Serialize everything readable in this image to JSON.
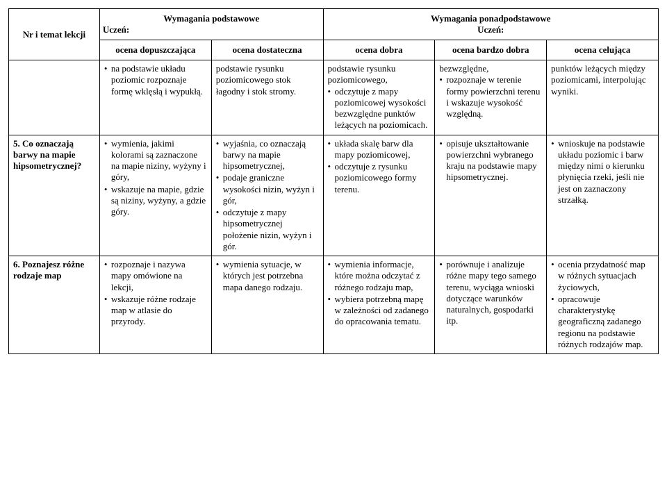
{
  "header": {
    "col_topic": "Nr i temat lekcji",
    "group_basic_title": "Wymagania podstawowe",
    "group_above_title": "Wymagania ponadpodstawowe",
    "student_label": "Uczeń:",
    "grades": {
      "g1": "ocena dopuszczająca",
      "g2": "ocena dostateczna",
      "g3": "ocena dobra",
      "g4": "ocena bardzo dobra",
      "g5": "ocena celująca"
    }
  },
  "row0": {
    "topic": "",
    "c1": "na podstawie układu poziomic rozpoznaje formę wklęsłą i wypukłą.",
    "c2": "podstawie rysunku poziomicowego stok łagodny i stok stromy.",
    "c3_a": "podstawie rysunku poziomicowego,",
    "c3_b": "odczytuje z mapy poziomicowej wysokości bezwzględne punktów leżących na poziomicach.",
    "c4_a": "bezwzględne,",
    "c4_b": "rozpoznaje w terenie formy powierzchni terenu i wskazuje wysokość względną.",
    "c5": "punktów leżących między poziomicami, interpolując wyniki."
  },
  "row1": {
    "topic": "5. Co oznaczają barwy na mapie hipsometrycznej?",
    "c1_a": "wymienia, jakimi kolorami są zaznaczone na mapie niziny, wyżyny i góry,",
    "c1_b": "wskazuje na mapie, gdzie są niziny, wyżyny, a gdzie góry.",
    "c2_a": "wyjaśnia, co oznaczają barwy na mapie hipsometrycznej,",
    "c2_b": "podaje graniczne wysokości nizin, wyżyn i gór,",
    "c2_c": "odczytuje z mapy hipsometrycznej położenie nizin, wyżyn i gór.",
    "c3_a": "układa skalę barw dla mapy poziomicowej,",
    "c3_b": "odczytuje z rysunku poziomicowego formy terenu.",
    "c4_a": "opisuje ukształtowanie powierzchni wybranego kraju na podstawie mapy hipsometrycznej.",
    "c5_a": "wnioskuje na podstawie układu poziomic i barw między nimi o kierunku płynięcia rzeki, jeśli nie jest on zaznaczony strzałką."
  },
  "row2": {
    "topic": "6. Poznajesz różne rodzaje map",
    "c1_a": "rozpoznaje i nazywa mapy omówione na lekcji,",
    "c1_b": "wskazuje różne rodzaje map w atlasie do przyrody.",
    "c2_a": "wymienia sytuacje, w których jest potrzebna mapa danego rodzaju.",
    "c3_a": "wymienia informacje, które można odczytać z różnego rodzaju map,",
    "c3_b": "wybiera potrzebną mapę w zależności od zadanego do opracowania tematu.",
    "c4_a": "porównuje i analizuje różne mapy tego samego terenu, wyciąga wnioski dotyczące warunków naturalnych, gospodarki itp.",
    "c5_a": "ocenia przydatność map w różnych sytuacjach życiowych,",
    "c5_b": "opracowuje charakterystykę geograficzną zadanego regionu na podstawie różnych rodzajów map."
  }
}
